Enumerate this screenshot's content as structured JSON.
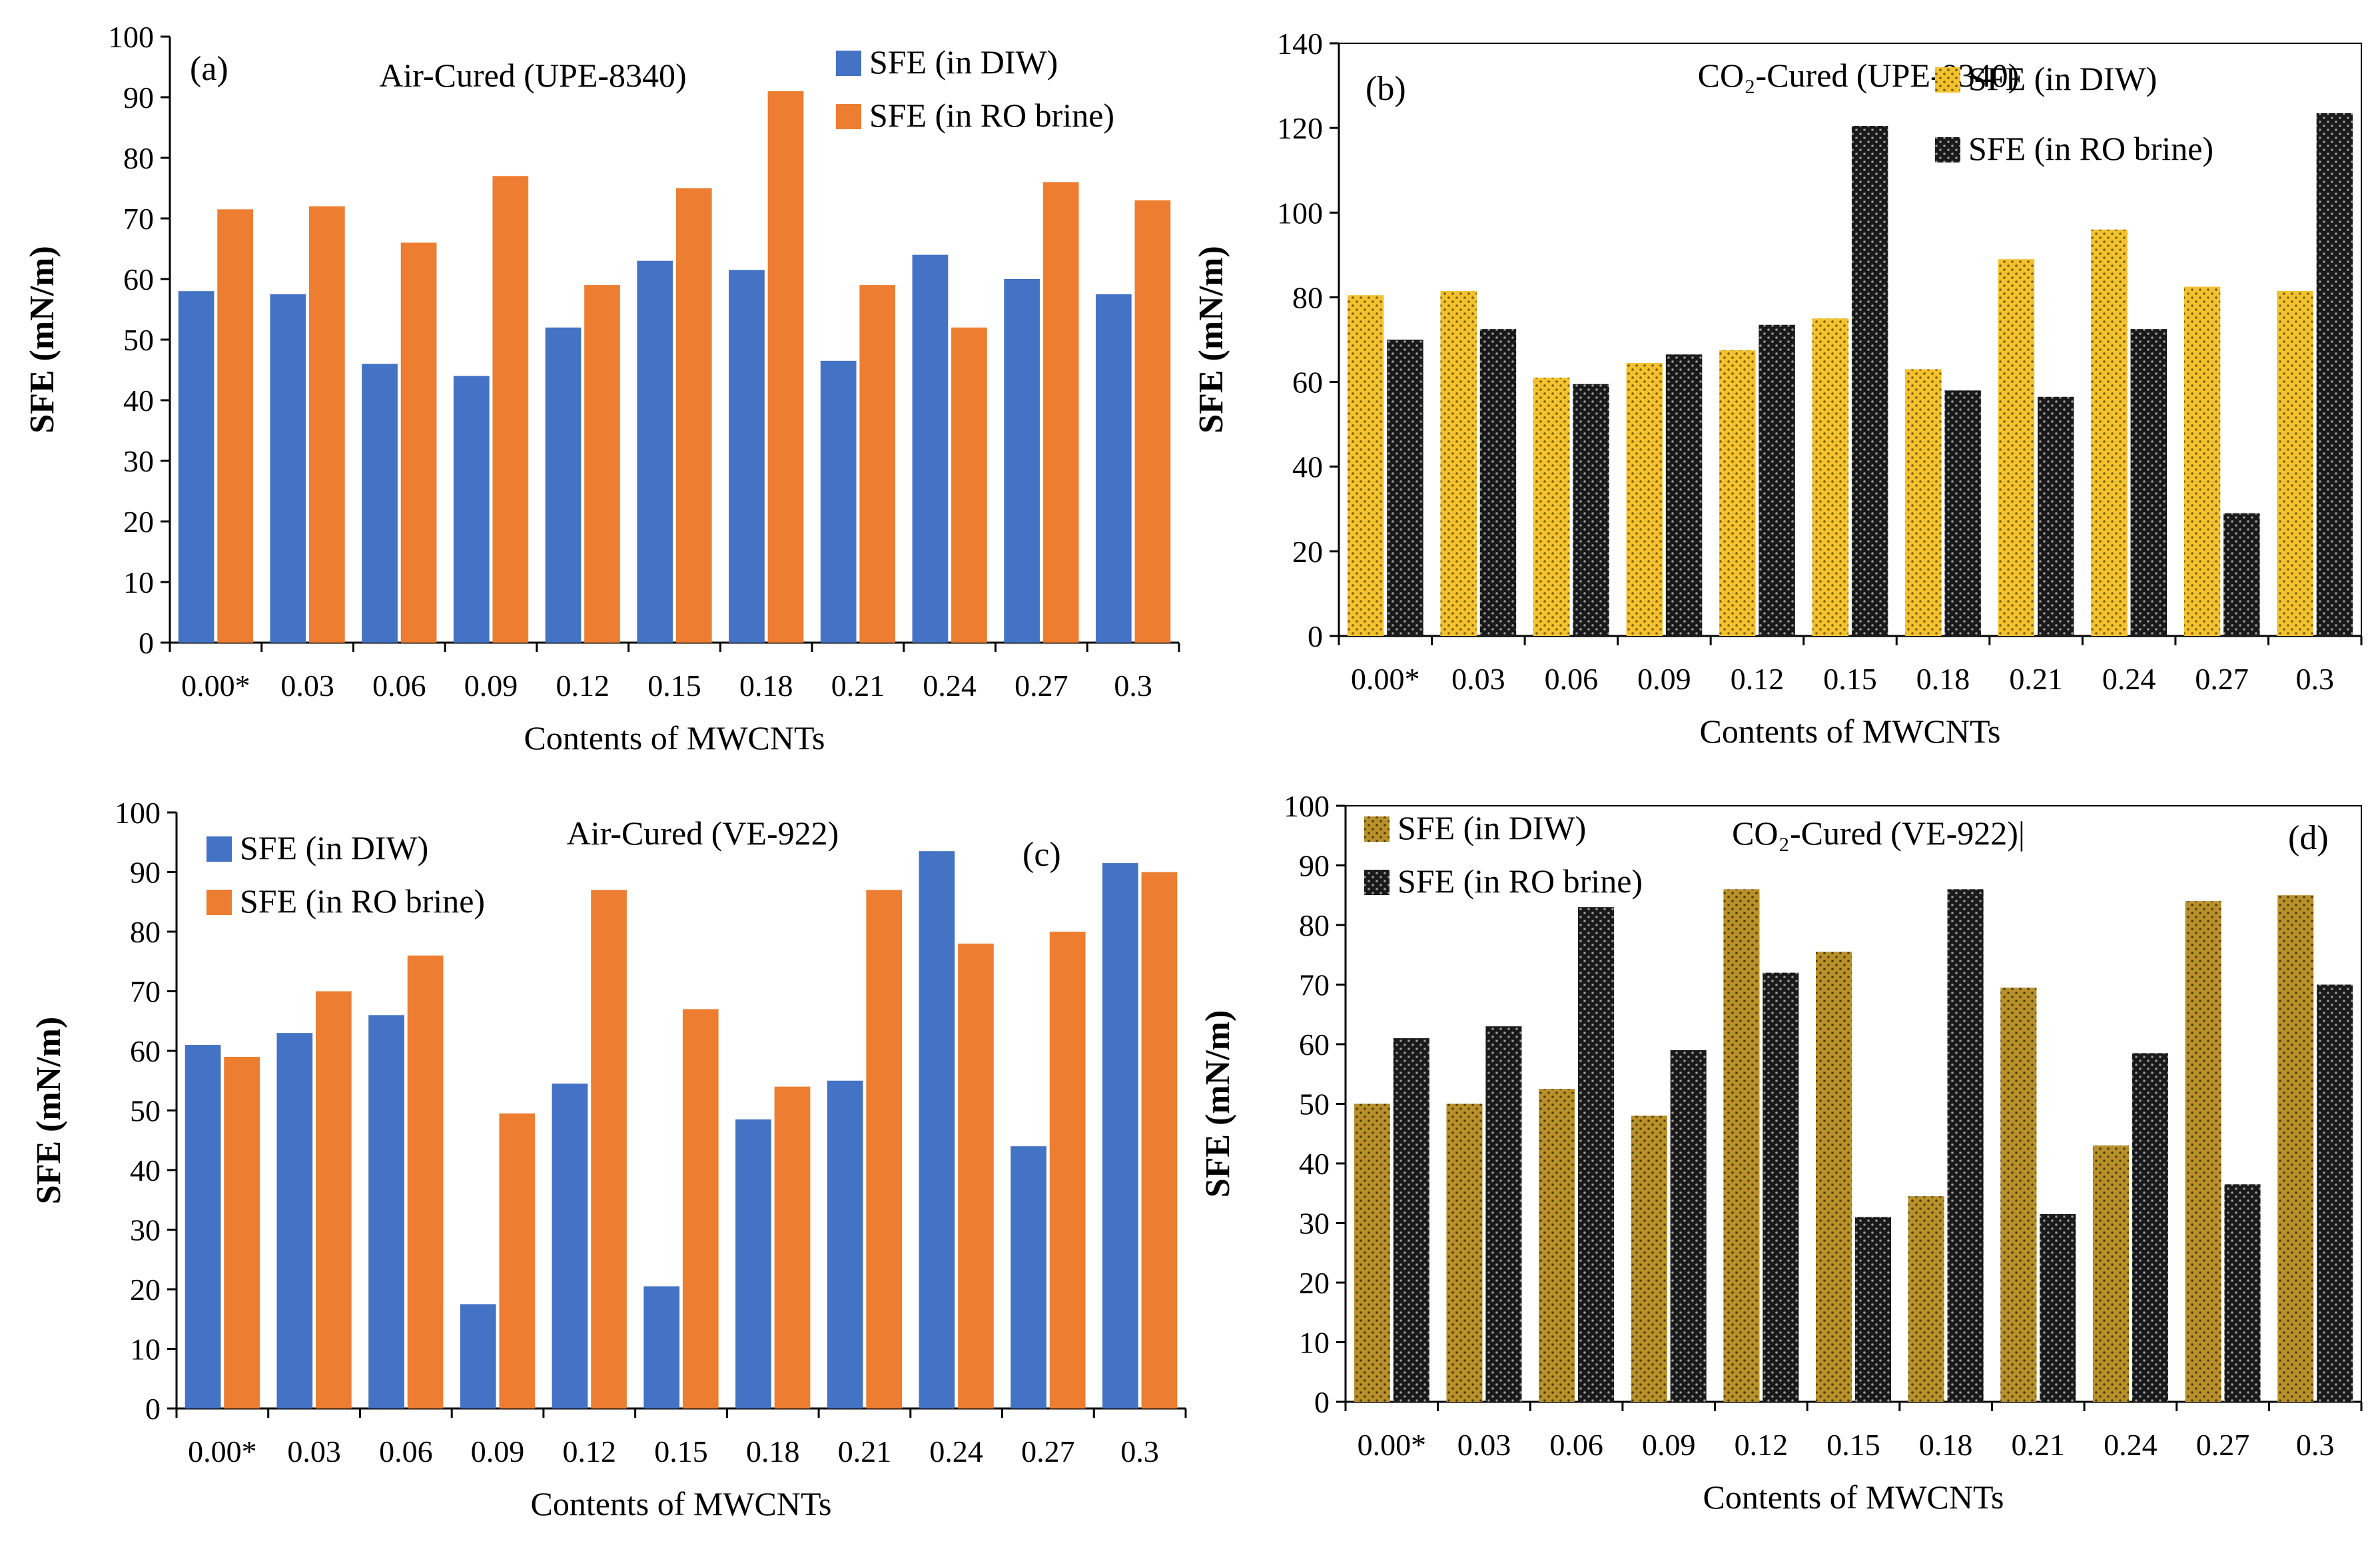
{
  "chart_data": [
    {
      "panel": "(a)",
      "type": "bar",
      "title": "Air-Cured  (UPE-8340)",
      "xlabel": "Contents  of  MWCNTs",
      "ylabel": "SFE  (mN/m)",
      "categories": [
        "0.00*",
        "0.03",
        "0.06",
        "0.09",
        "0.12",
        "0.15",
        "0.18",
        "0.21",
        "0.24",
        "0.27",
        "0.3"
      ],
      "ylim": [
        0,
        100
      ],
      "yticks": [
        0,
        10,
        20,
        30,
        40,
        50,
        60,
        70,
        80,
        90,
        100
      ],
      "legend_position": "top-right",
      "series": [
        {
          "name": "SFE  (in DIW)",
          "color": "#4472C4",
          "pattern": "solid",
          "values": [
            58,
            57.5,
            46,
            44,
            52,
            63,
            61.5,
            46.5,
            64,
            60,
            57.5
          ]
        },
        {
          "name": "SFE  (in RO brine)",
          "color": "#ED7D31",
          "pattern": "solid",
          "values": [
            71.5,
            72,
            66,
            77,
            59,
            75,
            91,
            59,
            52,
            76,
            73
          ]
        }
      ]
    },
    {
      "panel": "(b)",
      "type": "bar",
      "title": "CO₂-Cured  (UPE-8340)",
      "xlabel": "Contents  of  MWCNTs",
      "ylabel": "SFE  (mN/m)",
      "categories": [
        "0.00*",
        "0.03",
        "0.06",
        "0.09",
        "0.12",
        "0.15",
        "0.18",
        "0.21",
        "0.24",
        "0.27",
        "0.3"
      ],
      "ylim": [
        0,
        140
      ],
      "yticks": [
        0,
        20,
        40,
        60,
        80,
        100,
        120,
        140
      ],
      "legend_position": "top-right",
      "series": [
        {
          "name": "SFE  (in DIW)",
          "color": "#F2C12E",
          "pattern": "dots",
          "values": [
            80.5,
            81.5,
            61,
            64.5,
            67.5,
            75,
            63,
            89,
            96,
            82.5,
            81.5
          ]
        },
        {
          "name": "SFE  (in RO brine)",
          "color": "#1A1A1A",
          "pattern": "dots",
          "values": [
            70,
            72.5,
            59.5,
            66.5,
            73.5,
            120.5,
            58,
            56.5,
            72.5,
            29,
            123.5
          ]
        }
      ]
    },
    {
      "panel": "(c)",
      "type": "bar",
      "title": "Air-Cured  (VE-922)",
      "xlabel": "Contents  of  MWCNTs",
      "ylabel": "SFE  (mN/m)",
      "categories": [
        "0.00*",
        "0.03",
        "0.06",
        "0.09",
        "0.12",
        "0.15",
        "0.18",
        "0.21",
        "0.24",
        "0.27",
        "0.3"
      ],
      "ylim": [
        0,
        100
      ],
      "yticks": [
        0,
        10,
        20,
        30,
        40,
        50,
        60,
        70,
        80,
        90,
        100
      ],
      "legend_position": "top-left",
      "series": [
        {
          "name": "SFE  (in DIW)",
          "color": "#4472C4",
          "pattern": "solid",
          "values": [
            61,
            63,
            66,
            17.5,
            54.5,
            20.5,
            48.5,
            55,
            93.5,
            44,
            91.5
          ]
        },
        {
          "name": "SFE  (in RO brine)",
          "color": "#ED7D31",
          "pattern": "solid",
          "values": [
            59,
            70,
            76,
            49.5,
            87,
            67,
            54,
            87,
            78,
            80,
            90
          ]
        }
      ]
    },
    {
      "panel": "(d)",
      "type": "bar",
      "title": "CO₂-Cured  (VE-922)|",
      "xlabel": "Contents  of  MWCNTs",
      "ylabel": "SFE  (mN/m)",
      "categories": [
        "0.00*",
        "0.03",
        "0.06",
        "0.09",
        "0.12",
        "0.15",
        "0.18",
        "0.21",
        "0.24",
        "0.27",
        "0.3"
      ],
      "ylim": [
        0,
        100
      ],
      "yticks": [
        0,
        10,
        20,
        30,
        40,
        50,
        60,
        70,
        80,
        90,
        100
      ],
      "legend_position": "top-left",
      "series": [
        {
          "name": "SFE  (in DIW)",
          "color": "#B8912B",
          "pattern": "dots",
          "values": [
            50,
            50,
            52.5,
            48,
            86,
            75.5,
            34.5,
            69.5,
            43,
            84,
            85
          ]
        },
        {
          "name": "SFE  (in RO brine)",
          "color": "#1A1A1A",
          "pattern": "dots",
          "values": [
            61,
            63,
            83,
            59,
            72,
            31,
            86,
            31.5,
            58.5,
            36.5,
            70
          ]
        }
      ]
    }
  ]
}
